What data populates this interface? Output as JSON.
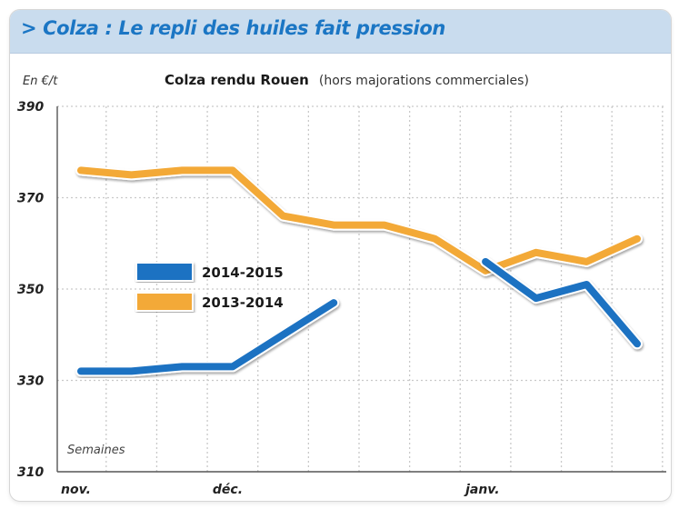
{
  "header": {
    "text": "> Colza : Le repli des huiles fait pression"
  },
  "colors": {
    "header_bg": "#c9dcee",
    "header_text": "#1b76c4",
    "series_2014_2015": "#1c72c2",
    "series_2013_2014": "#f3a937",
    "grid": "#c9c9c9"
  },
  "chart_data": {
    "type": "line",
    "title": "Colza rendu Rouen",
    "subtitle": "(hors majorations commerciales)",
    "ylabel": "En €/t",
    "xlabel": "Semaines",
    "ylim": [
      310,
      390
    ],
    "yticks": [
      310,
      330,
      350,
      370,
      390
    ],
    "x_week_labels": [
      {
        "week": 0,
        "label": "nov."
      },
      {
        "week": 3,
        "label": "déc."
      },
      {
        "week": 8,
        "label": "janv."
      }
    ],
    "xlim": [
      0,
      11
    ],
    "grid": true,
    "legend_position": "center-left",
    "series": [
      {
        "name": "2014-2015",
        "color": "#1c72c2",
        "x": [
          0,
          1,
          2,
          3,
          4,
          5,
          8,
          9,
          10,
          11
        ],
        "y": [
          332,
          332,
          333,
          333,
          340,
          347,
          356,
          348,
          351,
          338
        ],
        "segments": [
          [
            0,
            6
          ],
          [
            6,
            10
          ]
        ]
      },
      {
        "name": "2013-2014",
        "color": "#f3a937",
        "x": [
          0,
          1,
          2,
          3,
          4,
          5,
          6,
          7,
          8,
          9,
          10,
          11
        ],
        "y": [
          376,
          375,
          376,
          376,
          366,
          364,
          364,
          361,
          354,
          358,
          356,
          361
        ]
      }
    ]
  }
}
